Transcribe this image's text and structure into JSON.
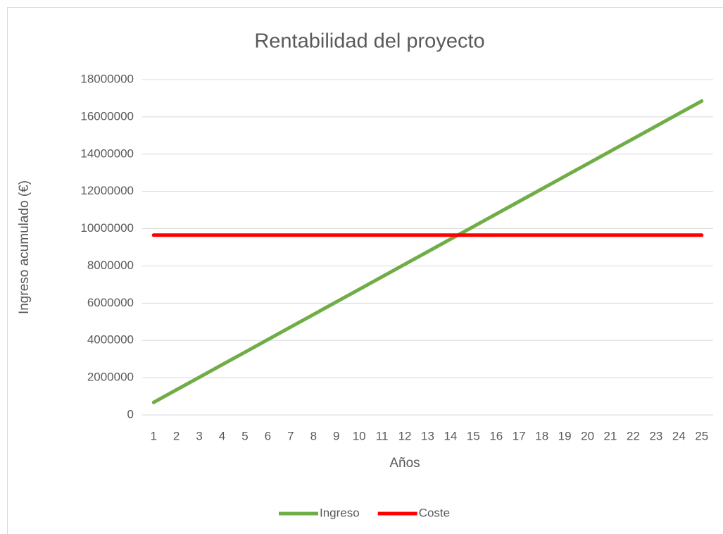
{
  "chart_data": {
    "type": "line",
    "title": "Rentabilidad del proyecto",
    "x_label": "Años",
    "y_label": "Ingreso acumulado (€)",
    "categories": [
      "1",
      "2",
      "3",
      "4",
      "5",
      "6",
      "7",
      "8",
      "9",
      "10",
      "11",
      "12",
      "13",
      "14",
      "15",
      "16",
      "17",
      "18",
      "19",
      "20",
      "21",
      "22",
      "23",
      "24",
      "25"
    ],
    "series": [
      {
        "name": "Ingreso",
        "color": "#70ad47",
        "values": [
          674000,
          1348000,
          2022000,
          2696000,
          3370000,
          4044000,
          4718000,
          5392000,
          6066000,
          6740000,
          7414000,
          8088000,
          8762000,
          9436000,
          10110000,
          10784000,
          11458000,
          12132000,
          12806000,
          13480000,
          14154000,
          14828000,
          15502000,
          16176000,
          16850000
        ]
      },
      {
        "name": "Coste",
        "color": "#ff0000",
        "values": [
          9650000,
          9650000,
          9650000,
          9650000,
          9650000,
          9650000,
          9650000,
          9650000,
          9650000,
          9650000,
          9650000,
          9650000,
          9650000,
          9650000,
          9650000,
          9650000,
          9650000,
          9650000,
          9650000,
          9650000,
          9650000,
          9650000,
          9650000,
          9650000,
          9650000
        ]
      }
    ],
    "ylim": [
      0,
      18000000
    ],
    "yticks": [
      0,
      2000000,
      4000000,
      6000000,
      8000000,
      10000000,
      12000000,
      14000000,
      16000000,
      18000000
    ],
    "grid": true,
    "legend": "bottom"
  }
}
